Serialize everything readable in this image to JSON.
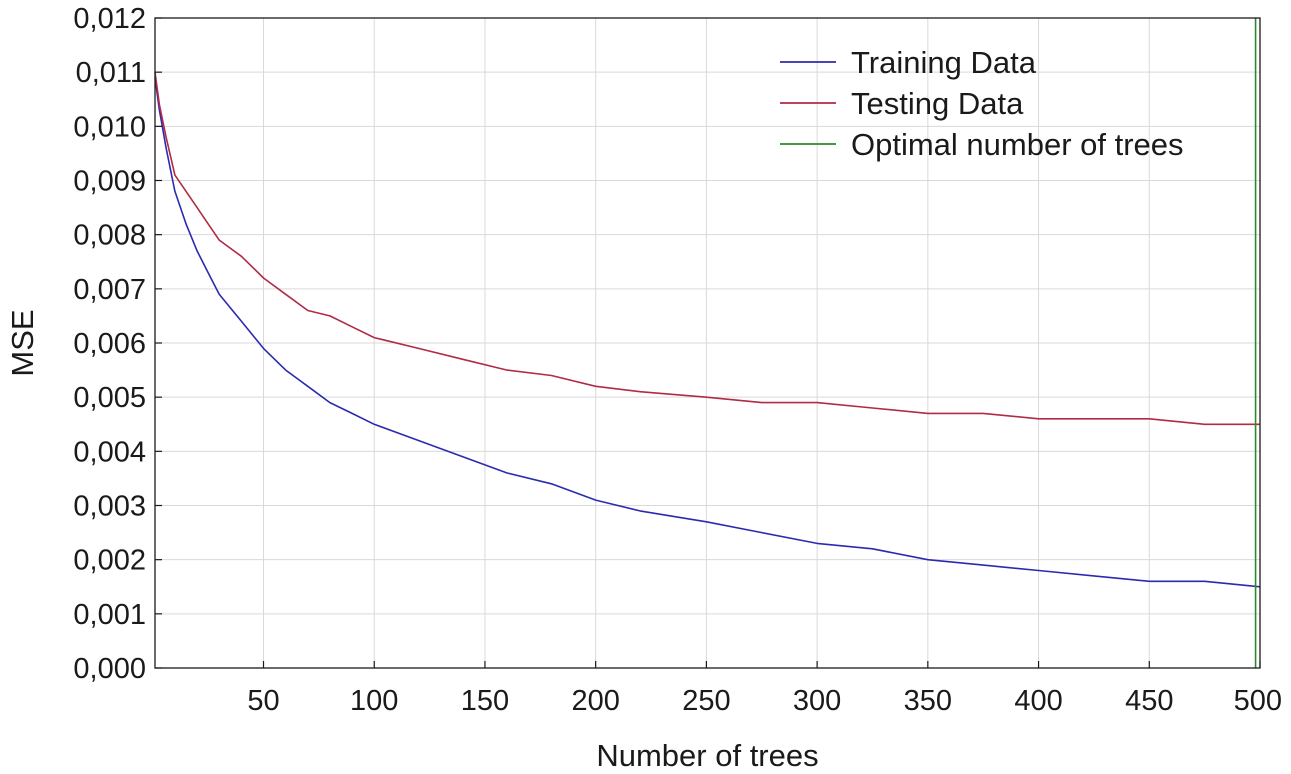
{
  "chart_data": {
    "type": "line",
    "title": "",
    "xlabel": "Number of trees",
    "ylabel": "MSE",
    "xlim": [
      1,
      500
    ],
    "ylim": [
      0.0,
      0.012
    ],
    "x_ticks": [
      50,
      100,
      150,
      200,
      250,
      300,
      350,
      400,
      450,
      500
    ],
    "x_tick_labels": [
      "50",
      "100",
      "150",
      "200",
      "250",
      "300",
      "350",
      "400",
      "450",
      "500"
    ],
    "y_ticks": [
      0.0,
      0.001,
      0.002,
      0.003,
      0.004,
      0.005,
      0.006,
      0.007,
      0.008,
      0.009,
      0.01,
      0.011,
      0.012
    ],
    "y_tick_labels": [
      "0,000",
      "0,001",
      "0,002",
      "0,003",
      "0,004",
      "0,005",
      "0,006",
      "0,007",
      "0,008",
      "0,009",
      "0,010",
      "0,011",
      "0,012"
    ],
    "grid": true,
    "legend_position": "top-right",
    "series": [
      {
        "name": "Training Data",
        "color": "#2b2bb0",
        "x": [
          1,
          3,
          6,
          10,
          15,
          20,
          25,
          30,
          40,
          50,
          60,
          70,
          80,
          90,
          100,
          120,
          140,
          160,
          180,
          200,
          220,
          250,
          275,
          300,
          325,
          350,
          375,
          400,
          425,
          450,
          475,
          500
        ],
        "y": [
          0.0109,
          0.0103,
          0.0096,
          0.0088,
          0.0082,
          0.0077,
          0.0073,
          0.0069,
          0.0064,
          0.0059,
          0.0055,
          0.0052,
          0.0049,
          0.0047,
          0.0045,
          0.0042,
          0.0039,
          0.0036,
          0.0034,
          0.0031,
          0.0029,
          0.0027,
          0.0025,
          0.0023,
          0.0022,
          0.002,
          0.0019,
          0.0018,
          0.0017,
          0.0016,
          0.0016,
          0.0015
        ]
      },
      {
        "name": "Testing Data",
        "color": "#b02b45",
        "x": [
          1,
          3,
          6,
          10,
          15,
          20,
          25,
          30,
          40,
          50,
          60,
          70,
          80,
          90,
          100,
          120,
          140,
          160,
          180,
          200,
          220,
          250,
          275,
          300,
          325,
          350,
          375,
          400,
          425,
          450,
          475,
          500
        ],
        "y": [
          0.011,
          0.0104,
          0.0098,
          0.0091,
          0.0088,
          0.0085,
          0.0082,
          0.0079,
          0.0076,
          0.0072,
          0.0069,
          0.0066,
          0.0065,
          0.0063,
          0.0061,
          0.0059,
          0.0057,
          0.0055,
          0.0054,
          0.0052,
          0.0051,
          0.005,
          0.0049,
          0.0049,
          0.0048,
          0.0047,
          0.0047,
          0.0046,
          0.0046,
          0.0046,
          0.0045,
          0.0045
        ]
      },
      {
        "name": "Optimal number of trees",
        "color": "#2b8a2b",
        "type": "vline",
        "x_value": 498
      }
    ]
  }
}
